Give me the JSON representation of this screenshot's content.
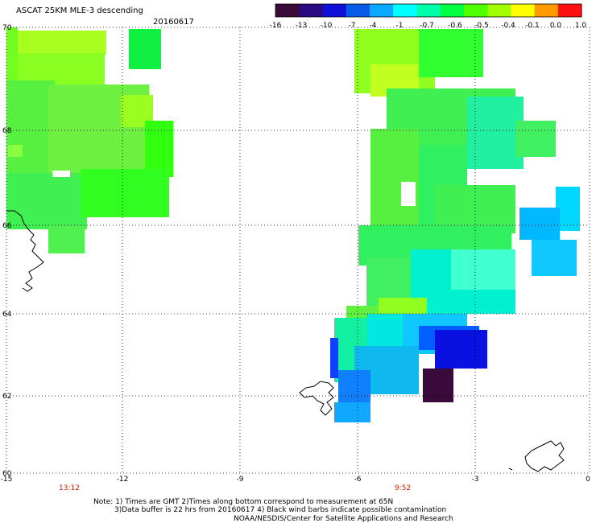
{
  "title": "ASCAT 25KM MLE-3 descending",
  "date": "20160617",
  "colorbar": {
    "labels": [
      "-16",
      "-13",
      "-10",
      "-7",
      "-4",
      "-1",
      "-0.7",
      "-0.6",
      "-0.5",
      "-0.4",
      "-0.1",
      "0.0",
      "1.0"
    ],
    "colors": [
      "#3a0a3a",
      "#2a0a80",
      "#1010d8",
      "#0a5ae8",
      "#0aa8ff",
      "#00ffff",
      "#00ffaa",
      "#00ff40",
      "#50ff00",
      "#a0ff00",
      "#ffff00",
      "#ff9900",
      "#ff1010"
    ]
  },
  "axes": {
    "x_ticks": [
      "-15",
      "-12",
      "-9",
      "-6",
      "-3",
      "0"
    ],
    "y_ticks": [
      "70",
      "68",
      "66",
      "64",
      "62",
      "60"
    ]
  },
  "pass_times": [
    "13:12",
    "9:52"
  ],
  "notes": [
    "Note: 1) Times are GMT 2)Times along bottom correspond to measurement at 65N",
    "3)Data buffer is 22 hrs from 20160617 4) Black wind barbs indicate possible contamination",
    "NOAA/NESDIS/Center for Satellite Applications and Research"
  ]
}
